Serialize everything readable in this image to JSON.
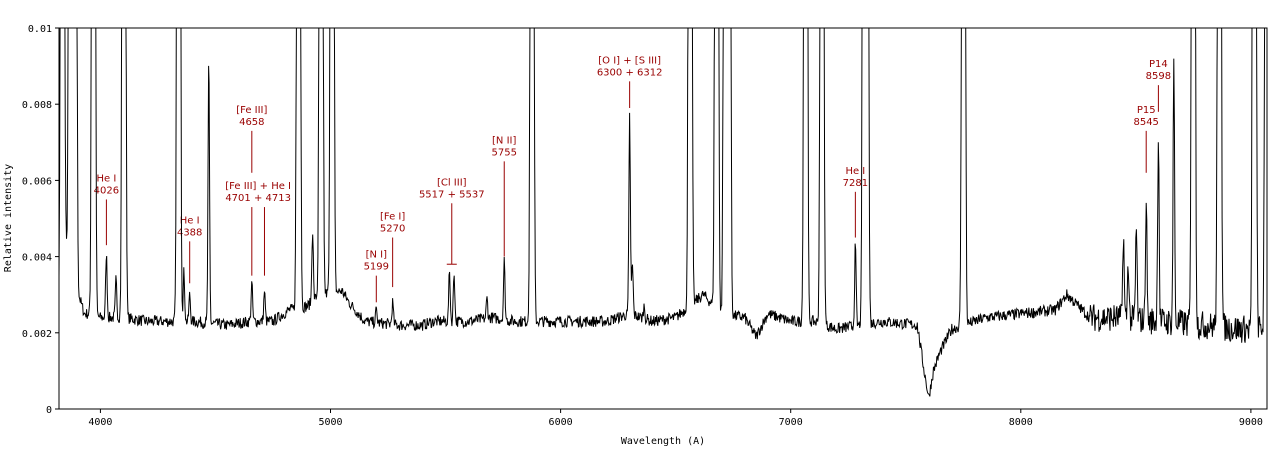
{
  "chart_data": {
    "type": "line",
    "title": "",
    "xlabel": "Wavelength (A)",
    "ylabel": "Relative intensity",
    "xlim": [
      3820,
      9070
    ],
    "ylim": [
      0,
      0.01
    ],
    "x_ticks": [
      4000,
      5000,
      6000,
      7000,
      8000,
      9000
    ],
    "x_tick_labels": [
      "4000",
      "5000",
      "6000",
      "7000",
      "8000",
      "9000"
    ],
    "y_ticks": [
      0,
      0.002,
      0.004,
      0.006,
      0.008,
      0.01
    ],
    "y_tick_labels": [
      "0",
      "0.002",
      "0.004",
      "0.006",
      "0.008",
      "0.01"
    ],
    "grid": false,
    "line_color": "#000000",
    "annotation_color": "#990000",
    "continuum": [
      [
        3820,
        0.003
      ],
      [
        3835,
        0.0055
      ],
      [
        3850,
        0.0045
      ],
      [
        3870,
        0.003
      ],
      [
        3905,
        0.003
      ],
      [
        3930,
        0.0025
      ],
      [
        3960,
        0.0025
      ],
      [
        4000,
        0.0024
      ],
      [
        4100,
        0.0024
      ],
      [
        4200,
        0.0023
      ],
      [
        4300,
        0.0023
      ],
      [
        4400,
        0.0023
      ],
      [
        4550,
        0.0022
      ],
      [
        4650,
        0.0023
      ],
      [
        4750,
        0.0023
      ],
      [
        4820,
        0.0026
      ],
      [
        4900,
        0.0027
      ],
      [
        4950,
        0.003
      ],
      [
        5050,
        0.0031
      ],
      [
        5080,
        0.0028
      ],
      [
        5150,
        0.0023
      ],
      [
        5300,
        0.0022
      ],
      [
        5400,
        0.0022
      ],
      [
        5450,
        0.0023
      ],
      [
        5600,
        0.0023
      ],
      [
        5700,
        0.0024
      ],
      [
        5800,
        0.0023
      ],
      [
        5950,
        0.0023
      ],
      [
        6100,
        0.0023
      ],
      [
        6200,
        0.0023
      ],
      [
        6300,
        0.0025
      ],
      [
        6400,
        0.0023
      ],
      [
        6500,
        0.0024
      ],
      [
        6620,
        0.003
      ],
      [
        6700,
        0.0025
      ],
      [
        6800,
        0.0024
      ],
      [
        6850,
        0.0019
      ],
      [
        6900,
        0.0025
      ],
      [
        7000,
        0.0023
      ],
      [
        7100,
        0.0023
      ],
      [
        7200,
        0.0021
      ],
      [
        7300,
        0.0022
      ],
      [
        7400,
        0.0023
      ],
      [
        7550,
        0.0022
      ],
      [
        7580,
        0.001
      ],
      [
        7600,
        0.0003
      ],
      [
        7620,
        0.001
      ],
      [
        7650,
        0.0015
      ],
      [
        7700,
        0.0021
      ],
      [
        7850,
        0.0024
      ],
      [
        8000,
        0.0025
      ],
      [
        8150,
        0.0026
      ],
      [
        8200,
        0.003
      ],
      [
        8300,
        0.0024
      ],
      [
        8400,
        0.0024
      ],
      [
        8600,
        0.0023
      ],
      [
        8800,
        0.0022
      ],
      [
        8950,
        0.0021
      ],
      [
        9070,
        0.0021
      ]
    ],
    "emission_lines": [
      {
        "x": 3835,
        "peak": 0.01
      },
      {
        "x": 3870,
        "peak": 0.01
      },
      {
        "x": 3889,
        "peak": 0.01
      },
      {
        "x": 3970,
        "peak": 0.01
      },
      {
        "x": 4026,
        "peak": 0.0041
      },
      {
        "x": 4068,
        "peak": 0.0034
      },
      {
        "x": 4102,
        "peak": 0.01
      },
      {
        "x": 4340,
        "peak": 0.01
      },
      {
        "x": 4363,
        "peak": 0.0036
      },
      {
        "x": 4388,
        "peak": 0.003
      },
      {
        "x": 4471,
        "peak": 0.0092
      },
      {
        "x": 4658,
        "peak": 0.0033
      },
      {
        "x": 4713,
        "peak": 0.0031
      },
      {
        "x": 4861,
        "peak": 0.01
      },
      {
        "x": 4922,
        "peak": 0.0047
      },
      {
        "x": 4959,
        "peak": 0.01
      },
      {
        "x": 5007,
        "peak": 0.01
      },
      {
        "x": 5199,
        "peak": 0.0026
      },
      {
        "x": 5270,
        "peak": 0.0028
      },
      {
        "x": 5517,
        "peak": 0.0036
      },
      {
        "x": 5537,
        "peak": 0.0036
      },
      {
        "x": 5680,
        "peak": 0.0029
      },
      {
        "x": 5755,
        "peak": 0.0039
      },
      {
        "x": 5876,
        "peak": 0.01
      },
      {
        "x": 6300,
        "peak": 0.0077
      },
      {
        "x": 6312,
        "peak": 0.0038
      },
      {
        "x": 6363,
        "peak": 0.0027
      },
      {
        "x": 6563,
        "peak": 0.01
      },
      {
        "x": 6678,
        "peak": 0.01
      },
      {
        "x": 6716,
        "peak": 0.01
      },
      {
        "x": 6731,
        "peak": 0.01
      },
      {
        "x": 7065,
        "peak": 0.01
      },
      {
        "x": 7136,
        "peak": 0.01
      },
      {
        "x": 7281,
        "peak": 0.0043
      },
      {
        "x": 7320,
        "peak": 0.01
      },
      {
        "x": 7330,
        "peak": 0.01
      },
      {
        "x": 7751,
        "peak": 0.01
      },
      {
        "x": 8446,
        "peak": 0.0046
      },
      {
        "x": 8467,
        "peak": 0.0039
      },
      {
        "x": 8502,
        "peak": 0.0048
      },
      {
        "x": 8545,
        "peak": 0.0055
      },
      {
        "x": 8598,
        "peak": 0.0073
      },
      {
        "x": 8665,
        "peak": 0.0091
      },
      {
        "x": 8750,
        "peak": 0.01
      },
      {
        "x": 8863,
        "peak": 0.01
      },
      {
        "x": 9015,
        "peak": 0.01
      },
      {
        "x": 9069,
        "peak": 0.01
      }
    ],
    "annotations": [
      {
        "lines": [
          "He I",
          "4026"
        ],
        "x": 4026,
        "y_top": 0.0055,
        "y_bottom": 0.0043
      },
      {
        "lines": [
          "He I",
          "4388"
        ],
        "x": 4388,
        "y_top": 0.0044,
        "y_bottom": 0.0033
      },
      {
        "lines": [
          "[Fe III]",
          "4658"
        ],
        "x": 4658,
        "y_top": 0.0073,
        "y_bottom": 0.0062
      },
      {
        "lines": [
          "[Fe III] + He I",
          "4701 + 4713"
        ],
        "x": 4658,
        "x2": 4713,
        "y_top": 0.0053,
        "y_bottom": 0.0035
      },
      {
        "lines": [
          "[N I]",
          "5199"
        ],
        "x": 5199,
        "y_top": 0.0035,
        "y_bottom": 0.0028
      },
      {
        "lines": [
          "[Fe I]",
          "5270"
        ],
        "x": 5270,
        "y_top": 0.0045,
        "y_bottom": 0.0032
      },
      {
        "lines": [
          "[Cl III]",
          "5517 + 5537"
        ],
        "x": 5527,
        "y_top": 0.0054,
        "y_bottom": 0.0038,
        "bracket": true
      },
      {
        "lines": [
          "[N II]",
          "5755"
        ],
        "x": 5755,
        "y_top": 0.0065,
        "y_bottom": 0.004
      },
      {
        "lines": [
          "[O I] + [S III]",
          "6300 + 6312"
        ],
        "x": 6300,
        "y_top": 0.0086,
        "y_bottom": 0.0079
      },
      {
        "lines": [
          "He I",
          "7281"
        ],
        "x": 7281,
        "y_top": 0.0057,
        "y_bottom": 0.0045
      },
      {
        "lines": [
          "P15",
          "8545"
        ],
        "x": 8545,
        "y_top": 0.0073,
        "y_bottom": 0.0062
      },
      {
        "lines": [
          "P14",
          "8598"
        ],
        "x": 8598,
        "y_top": 0.0085,
        "y_bottom": 0.0078
      }
    ]
  }
}
